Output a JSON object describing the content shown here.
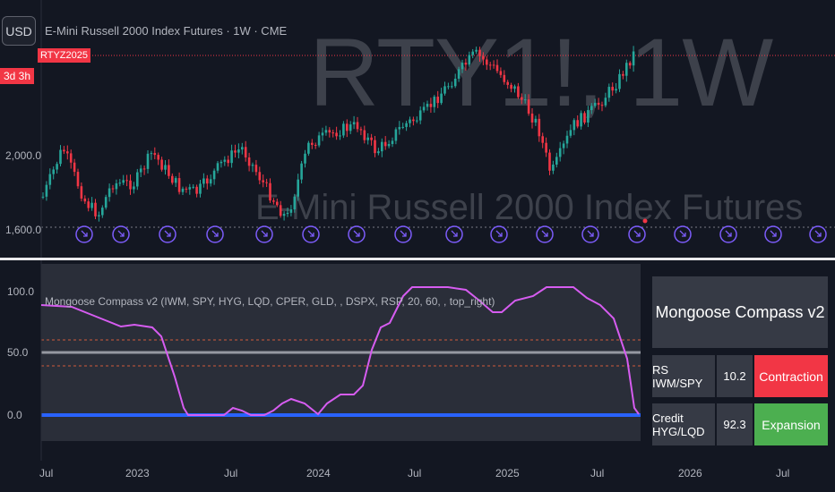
{
  "toolbar": {
    "currency": "USD"
  },
  "symbol": {
    "title": "E-Mini Russell 2000 Index Futures · 1W · CME",
    "contract_badge": "RTYZ2025",
    "countdown": "3d 3h"
  },
  "watermark": {
    "ticker": "RTY1!, 1W",
    "name": "E-Mini Russell 2000 Index Futures"
  },
  "price_axis": {
    "labels": [
      "2,000.0",
      "1,600.0"
    ]
  },
  "indicator": {
    "label": "Mongoose Compass v2 (IWM, SPY, HYG, LQD, CPER, GLD, , DSPX, RSP, 20, 60, , top_right)",
    "axis_labels": [
      "100.0",
      "50.0",
      "0.0"
    ],
    "line_color": "#d65cf0"
  },
  "table": {
    "title": "Mongoose Compass v2",
    "rows": [
      {
        "label": "RS IWM/SPY",
        "value": "10.2",
        "status": "Contraction",
        "status_color": "#f23645"
      },
      {
        "label": "Credit HYG/LQD",
        "value": "92.3",
        "status": "Expansion",
        "status_color": "#4caf50"
      }
    ]
  },
  "time_axis": {
    "labels": [
      "Jul",
      "2023",
      "Jul",
      "2024",
      "Jul",
      "2025",
      "Jul",
      "2026",
      "Jul"
    ]
  },
  "colors": {
    "up": "#26a69a",
    "down": "#f23645",
    "marker": "#7c5cfa",
    "background": "#131722"
  }
}
